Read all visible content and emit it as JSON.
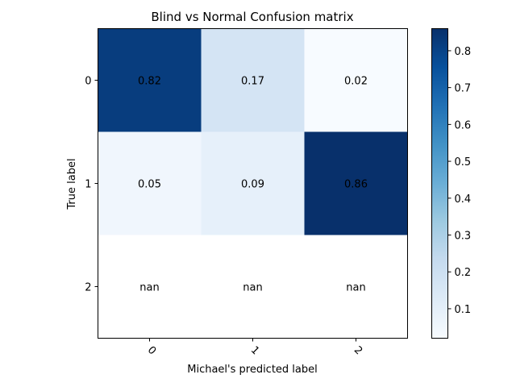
{
  "chart_data": {
    "type": "heatmap",
    "title": "Blind vs Normal Confusion matrix",
    "xlabel": "Michael's predicted label",
    "ylabel": "True label",
    "x_categories": [
      "0",
      "1",
      "2"
    ],
    "y_categories": [
      "0",
      "1",
      "2"
    ],
    "values": [
      [
        0.82,
        0.17,
        0.02
      ],
      [
        0.05,
        0.09,
        0.86
      ],
      [
        null,
        null,
        null
      ]
    ],
    "cell_labels": [
      [
        "0.82",
        "0.17",
        "0.02"
      ],
      [
        "0.05",
        "0.09",
        "0.86"
      ],
      [
        "nan",
        "nan",
        "nan"
      ]
    ],
    "colorbar": {
      "colormap": "Blues",
      "range": [
        0.02,
        0.86
      ],
      "ticks": [
        0.1,
        0.2,
        0.3,
        0.4,
        0.5,
        0.6,
        0.7,
        0.8
      ],
      "tick_labels": [
        "0.1",
        "0.2",
        "0.3",
        "0.4",
        "0.5",
        "0.6",
        "0.7",
        "0.8"
      ]
    },
    "x_tick_rotation": 45,
    "grid": false
  }
}
